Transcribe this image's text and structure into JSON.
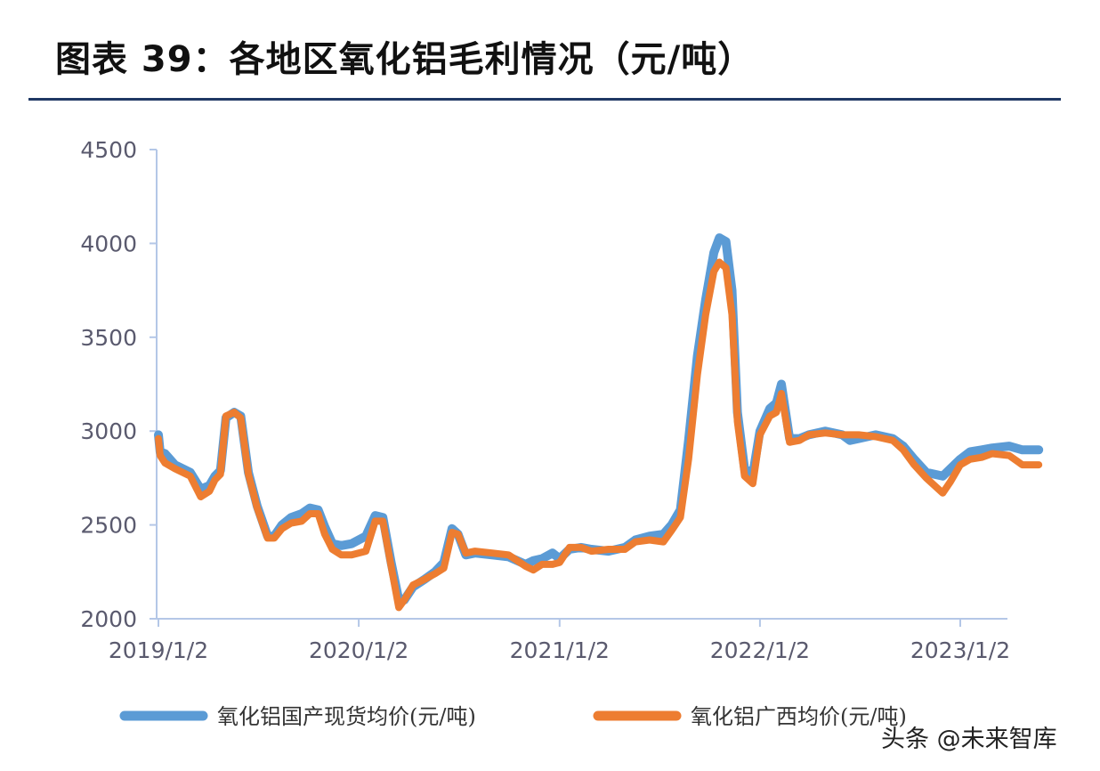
{
  "title": "图表 39：各地区氧化铝毛利情况（元/吨）",
  "watermark": "头条 @未来智库",
  "colors": {
    "national": "#5b9bd5",
    "guangxi": "#ed7d31",
    "axis": "#b4c7e7",
    "text": "#5a5a6e"
  },
  "chart_data": {
    "type": "line",
    "title": "各地区氧化铝毛利情况（元/吨）",
    "xlabel": "",
    "ylabel": "",
    "ylim": [
      2000,
      4500
    ],
    "yticks": [
      2000,
      2500,
      3000,
      3500,
      4000,
      4500
    ],
    "xticks": [
      "2019/1/2",
      "2020/1/2",
      "2021/1/2",
      "2022/1/2",
      "2023/1/2"
    ],
    "grid": false,
    "legend_position": "bottom",
    "series": [
      {
        "name": "氧化铝国产现货均价(元/吨)",
        "color": "#5b9bd5",
        "points": [
          [
            "2019-01-02",
            2980
          ],
          [
            "2019-01-05",
            2890
          ],
          [
            "2019-01-14",
            2880
          ],
          [
            "2019-02-01",
            2820
          ],
          [
            "2019-03-01",
            2780
          ],
          [
            "2019-03-20",
            2690
          ],
          [
            "2019-04-05",
            2710
          ],
          [
            "2019-04-15",
            2760
          ],
          [
            "2019-04-25",
            2790
          ],
          [
            "2019-05-05",
            3070
          ],
          [
            "2019-05-20",
            3100
          ],
          [
            "2019-06-01",
            3080
          ],
          [
            "2019-06-15",
            2780
          ],
          [
            "2019-07-01",
            2600
          ],
          [
            "2019-07-20",
            2440
          ],
          [
            "2019-08-01",
            2440
          ],
          [
            "2019-08-15",
            2500
          ],
          [
            "2019-09-01",
            2540
          ],
          [
            "2019-09-20",
            2560
          ],
          [
            "2019-10-05",
            2590
          ],
          [
            "2019-10-20",
            2580
          ],
          [
            "2019-11-01",
            2490
          ],
          [
            "2019-11-15",
            2400
          ],
          [
            "2019-12-01",
            2390
          ],
          [
            "2019-12-20",
            2400
          ],
          [
            "2020-01-15",
            2440
          ],
          [
            "2020-02-01",
            2550
          ],
          [
            "2020-02-15",
            2540
          ],
          [
            "2020-03-01",
            2300
          ],
          [
            "2020-03-15",
            2100
          ],
          [
            "2020-03-25",
            2100
          ],
          [
            "2020-04-10",
            2170
          ],
          [
            "2020-05-01",
            2210
          ],
          [
            "2020-05-20",
            2250
          ],
          [
            "2020-06-05",
            2300
          ],
          [
            "2020-06-20",
            2480
          ],
          [
            "2020-07-01",
            2450
          ],
          [
            "2020-07-15",
            2340
          ],
          [
            "2020-08-01",
            2350
          ],
          [
            "2020-09-01",
            2340
          ],
          [
            "2020-10-01",
            2330
          ],
          [
            "2020-11-01",
            2290
          ],
          [
            "2020-11-15",
            2310
          ],
          [
            "2020-12-01",
            2320
          ],
          [
            "2020-12-20",
            2350
          ],
          [
            "2021-01-02",
            2320
          ],
          [
            "2021-01-20",
            2370
          ],
          [
            "2021-02-10",
            2380
          ],
          [
            "2021-03-01",
            2370
          ],
          [
            "2021-04-01",
            2360
          ],
          [
            "2021-05-01",
            2380
          ],
          [
            "2021-05-20",
            2420
          ],
          [
            "2021-06-15",
            2440
          ],
          [
            "2021-07-10",
            2450
          ],
          [
            "2021-07-25",
            2500
          ],
          [
            "2021-08-10",
            2580
          ],
          [
            "2021-08-25",
            2950
          ],
          [
            "2021-09-10",
            3400
          ],
          [
            "2021-09-25",
            3700
          ],
          [
            "2021-10-10",
            3950
          ],
          [
            "2021-10-20",
            4030
          ],
          [
            "2021-11-01",
            4010
          ],
          [
            "2021-11-12",
            3750
          ],
          [
            "2021-11-22",
            3100
          ],
          [
            "2021-12-05",
            2800
          ],
          [
            "2021-12-20",
            2770
          ],
          [
            "2022-01-02",
            3000
          ],
          [
            "2022-01-20",
            3120
          ],
          [
            "2022-02-01",
            3150
          ],
          [
            "2022-02-10",
            3250
          ],
          [
            "2022-02-25",
            2960
          ],
          [
            "2022-03-15",
            2960
          ],
          [
            "2022-04-01",
            2980
          ],
          [
            "2022-05-01",
            3000
          ],
          [
            "2022-06-01",
            2980
          ],
          [
            "2022-06-15",
            2950
          ],
          [
            "2022-07-01",
            2960
          ],
          [
            "2022-08-01",
            2980
          ],
          [
            "2022-09-01",
            2960
          ],
          [
            "2022-09-20",
            2920
          ],
          [
            "2022-10-10",
            2850
          ],
          [
            "2022-11-01",
            2780
          ],
          [
            "2022-12-01",
            2760
          ],
          [
            "2022-12-15",
            2800
          ],
          [
            "2023-01-02",
            2850
          ],
          [
            "2023-01-20",
            2890
          ],
          [
            "2023-02-10",
            2900
          ],
          [
            "2023-03-01",
            2910
          ],
          [
            "2023-04-01",
            2920
          ],
          [
            "2023-04-25",
            2900
          ],
          [
            "2023-05-25",
            2900
          ]
        ]
      },
      {
        "name": "氧化铝广西均价(元/吨)",
        "color": "#ed7d31",
        "points": [
          [
            "2019-01-02",
            2960
          ],
          [
            "2019-01-05",
            2870
          ],
          [
            "2019-01-14",
            2830
          ],
          [
            "2019-02-01",
            2800
          ],
          [
            "2019-03-01",
            2760
          ],
          [
            "2019-03-20",
            2650
          ],
          [
            "2019-04-05",
            2680
          ],
          [
            "2019-04-15",
            2740
          ],
          [
            "2019-04-25",
            2770
          ],
          [
            "2019-05-05",
            3080
          ],
          [
            "2019-05-20",
            3100
          ],
          [
            "2019-06-01",
            3070
          ],
          [
            "2019-06-15",
            2770
          ],
          [
            "2019-07-01",
            2590
          ],
          [
            "2019-07-20",
            2430
          ],
          [
            "2019-08-01",
            2430
          ],
          [
            "2019-08-15",
            2480
          ],
          [
            "2019-09-01",
            2510
          ],
          [
            "2019-09-20",
            2520
          ],
          [
            "2019-10-05",
            2560
          ],
          [
            "2019-10-20",
            2560
          ],
          [
            "2019-11-01",
            2450
          ],
          [
            "2019-11-15",
            2370
          ],
          [
            "2019-12-01",
            2340
          ],
          [
            "2019-12-20",
            2340
          ],
          [
            "2020-01-15",
            2360
          ],
          [
            "2020-02-01",
            2520
          ],
          [
            "2020-02-15",
            2520
          ],
          [
            "2020-03-01",
            2280
          ],
          [
            "2020-03-15",
            2060
          ],
          [
            "2020-03-25",
            2100
          ],
          [
            "2020-04-10",
            2180
          ],
          [
            "2020-05-01",
            2210
          ],
          [
            "2020-05-20",
            2240
          ],
          [
            "2020-06-05",
            2270
          ],
          [
            "2020-06-20",
            2460
          ],
          [
            "2020-07-01",
            2450
          ],
          [
            "2020-07-15",
            2350
          ],
          [
            "2020-08-01",
            2360
          ],
          [
            "2020-09-01",
            2350
          ],
          [
            "2020-10-01",
            2340
          ],
          [
            "2020-11-01",
            2280
          ],
          [
            "2020-11-15",
            2260
          ],
          [
            "2020-12-01",
            2290
          ],
          [
            "2020-12-20",
            2290
          ],
          [
            "2021-01-02",
            2300
          ],
          [
            "2021-01-20",
            2380
          ],
          [
            "2021-02-10",
            2380
          ],
          [
            "2021-03-01",
            2360
          ],
          [
            "2021-04-01",
            2370
          ],
          [
            "2021-05-01",
            2370
          ],
          [
            "2021-05-20",
            2410
          ],
          [
            "2021-06-15",
            2420
          ],
          [
            "2021-07-10",
            2410
          ],
          [
            "2021-07-25",
            2470
          ],
          [
            "2021-08-10",
            2540
          ],
          [
            "2021-08-25",
            2850
          ],
          [
            "2021-09-10",
            3300
          ],
          [
            "2021-09-25",
            3620
          ],
          [
            "2021-10-10",
            3850
          ],
          [
            "2021-10-20",
            3900
          ],
          [
            "2021-11-01",
            3870
          ],
          [
            "2021-11-12",
            3620
          ],
          [
            "2021-11-22",
            3050
          ],
          [
            "2021-12-05",
            2760
          ],
          [
            "2021-12-20",
            2720
          ],
          [
            "2022-01-02",
            2980
          ],
          [
            "2022-01-20",
            3080
          ],
          [
            "2022-02-01",
            3100
          ],
          [
            "2022-02-10",
            3200
          ],
          [
            "2022-02-25",
            2940
          ],
          [
            "2022-03-15",
            2950
          ],
          [
            "2022-04-01",
            2980
          ],
          [
            "2022-05-01",
            2990
          ],
          [
            "2022-06-01",
            2980
          ],
          [
            "2022-06-15",
            2980
          ],
          [
            "2022-07-01",
            2980
          ],
          [
            "2022-08-01",
            2970
          ],
          [
            "2022-09-01",
            2950
          ],
          [
            "2022-09-20",
            2900
          ],
          [
            "2022-10-10",
            2820
          ],
          [
            "2022-11-01",
            2750
          ],
          [
            "2022-12-01",
            2670
          ],
          [
            "2022-12-15",
            2730
          ],
          [
            "2023-01-02",
            2820
          ],
          [
            "2023-01-20",
            2850
          ],
          [
            "2023-02-10",
            2860
          ],
          [
            "2023-03-01",
            2880
          ],
          [
            "2023-04-01",
            2870
          ],
          [
            "2023-04-25",
            2820
          ],
          [
            "2023-05-25",
            2820
          ]
        ]
      }
    ]
  }
}
